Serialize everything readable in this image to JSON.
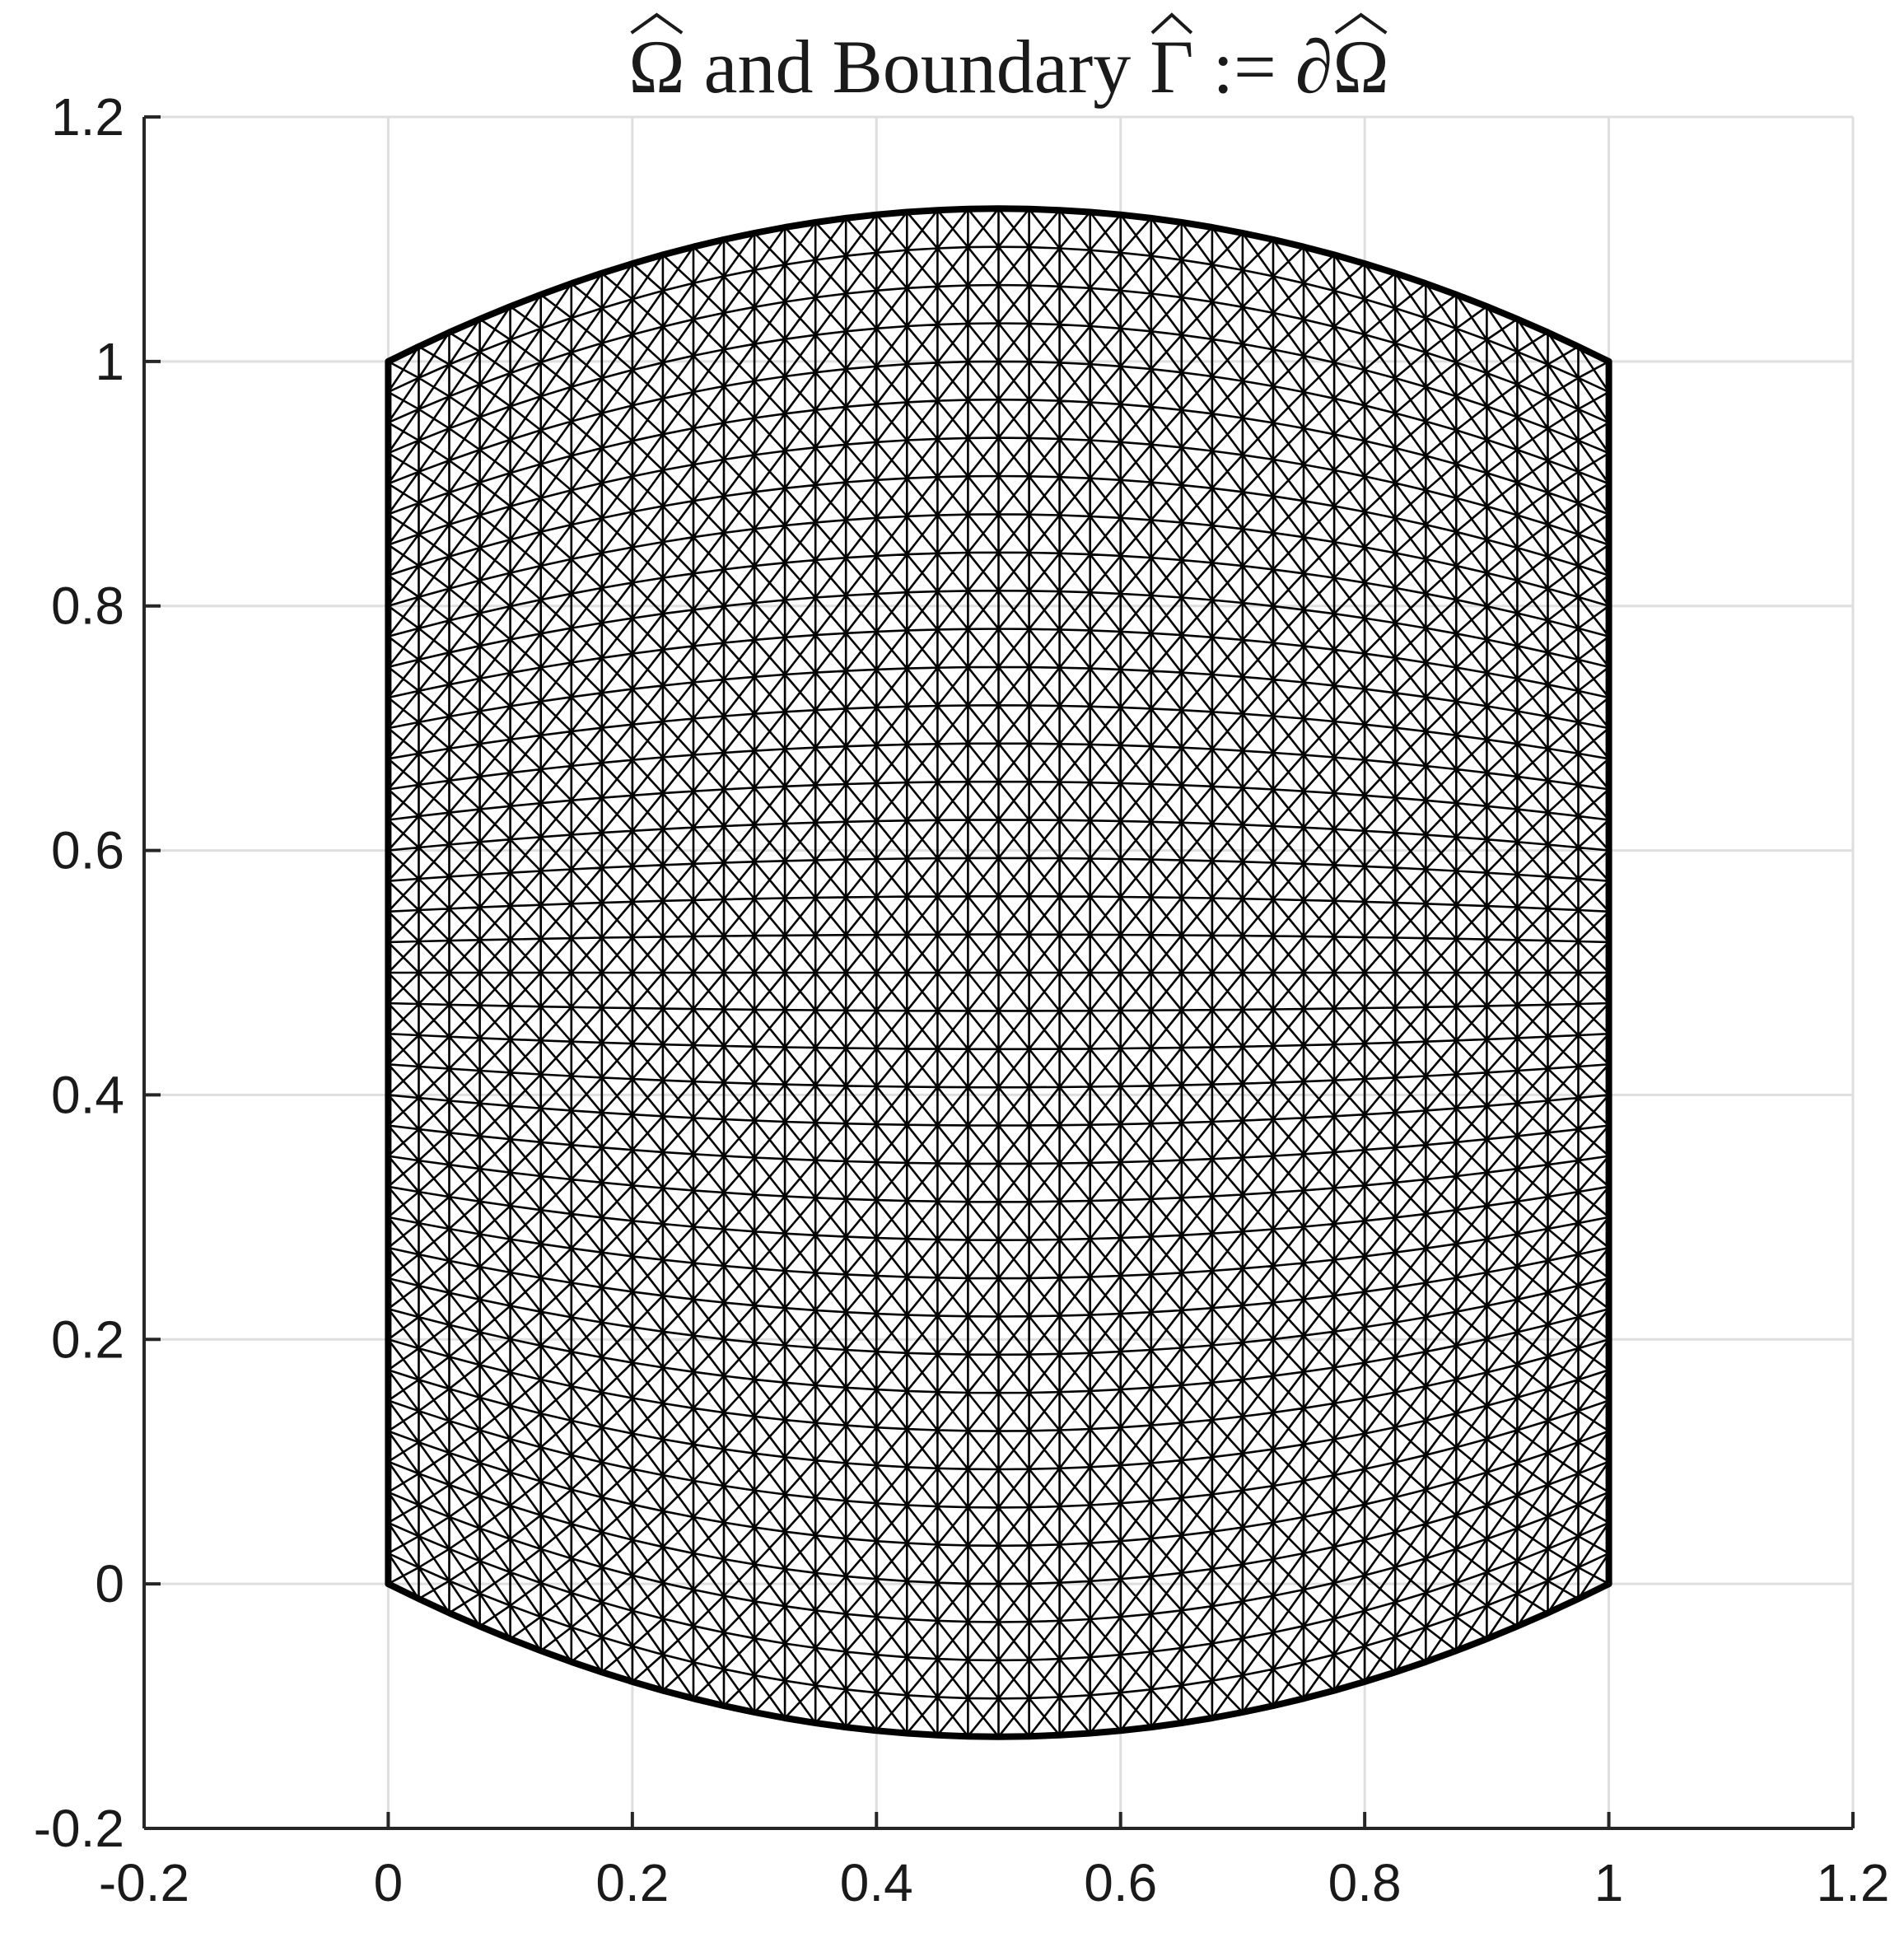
{
  "chart_data": {
    "type": "mesh",
    "title": "Ω and Boundary Γ := ∂Ω",
    "title_hat_marks": [
      "Ω",
      "Γ",
      "Ω"
    ],
    "xlabel": "",
    "ylabel": "",
    "xlim": [
      -0.2,
      1.2
    ],
    "ylim": [
      -0.2,
      1.2
    ],
    "x_ticks": [
      -0.2,
      0,
      0.2,
      0.4,
      0.6,
      0.8,
      1,
      1.2
    ],
    "y_ticks": [
      -0.2,
      0,
      0.2,
      0.4,
      0.6,
      0.8,
      1,
      1.2
    ],
    "x_tick_labels": [
      "-0.2",
      "0",
      "0.2",
      "0.4",
      "0.6",
      "0.8",
      "1",
      "1.2"
    ],
    "y_tick_labels": [
      "-0.2",
      "0",
      "0.2",
      "0.4",
      "0.6",
      "0.8",
      "1",
      "1.2"
    ],
    "grid": true,
    "legend": "none",
    "domain_region": {
      "x_range": [
        0,
        1
      ],
      "top_boundary": {
        "left_y": 1.0,
        "peak_y": 1.125,
        "right_y": 1.0,
        "peak_x": 0.5
      },
      "bottom_boundary": {
        "left_y": 0.0,
        "trough_y": -0.125,
        "right_y": 0.0,
        "trough_x": 0.5
      },
      "mesh_divisions_x": 40,
      "mesh_divisions_y": 40,
      "element_pattern": "crossed-diagonals"
    },
    "colors": {
      "mesh": "#000000",
      "grid": "#dedede",
      "axes": "#262626"
    }
  }
}
